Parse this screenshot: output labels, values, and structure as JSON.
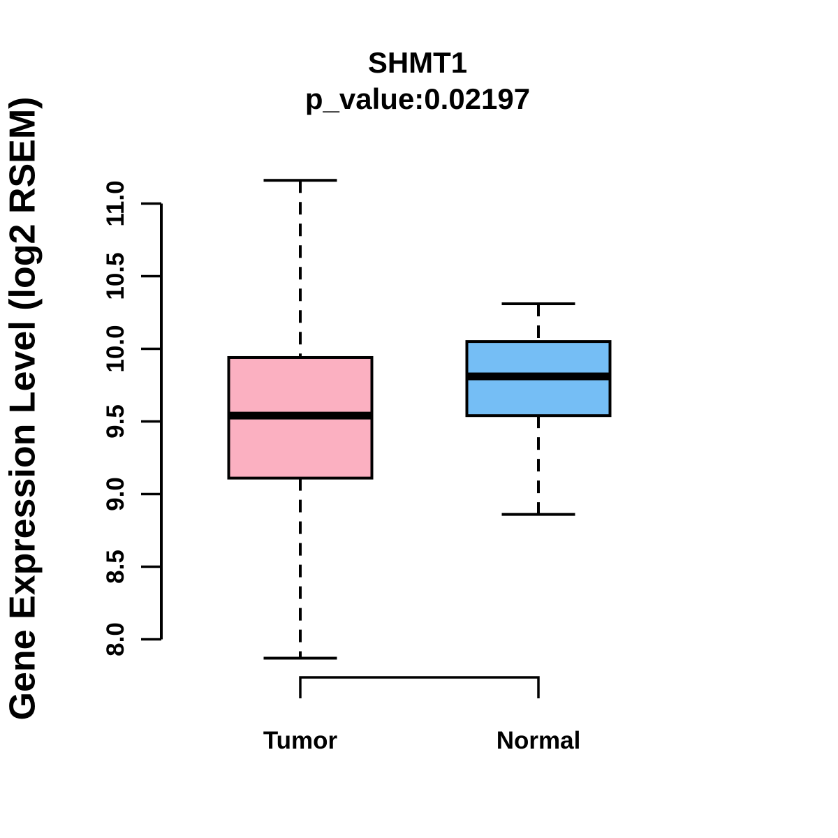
{
  "chart_data": {
    "type": "boxplot",
    "title": "SHMT1",
    "subtitle": "p_value:0.02197",
    "gene": "SHMT1",
    "p_value": 0.02197,
    "ylabel": "Gene Expression Level (log2 RSEM)",
    "ylim": [
      8.0,
      11.0
    ],
    "yticks": [
      8.0,
      8.5,
      9.0,
      9.5,
      10.0,
      10.5,
      11.0
    ],
    "ytick_labels": [
      "8.0",
      "8.5",
      "9.0",
      "9.5",
      "10.0",
      "10.5",
      "11.0"
    ],
    "categories": [
      "Tumor",
      "Normal"
    ],
    "series": [
      {
        "name": "Tumor",
        "color": "#FBB0C1",
        "whisker_low": 7.87,
        "q1": 9.11,
        "median": 9.54,
        "q3": 9.94,
        "whisker_high": 11.16
      },
      {
        "name": "Normal",
        "color": "#75BEF5",
        "whisker_low": 8.86,
        "q1": 9.54,
        "median": 9.81,
        "q3": 10.05,
        "whisker_high": 10.31
      }
    ],
    "grid": "off",
    "legend": "none",
    "line_color": "#000000",
    "background_color": "#FFFFFF"
  }
}
